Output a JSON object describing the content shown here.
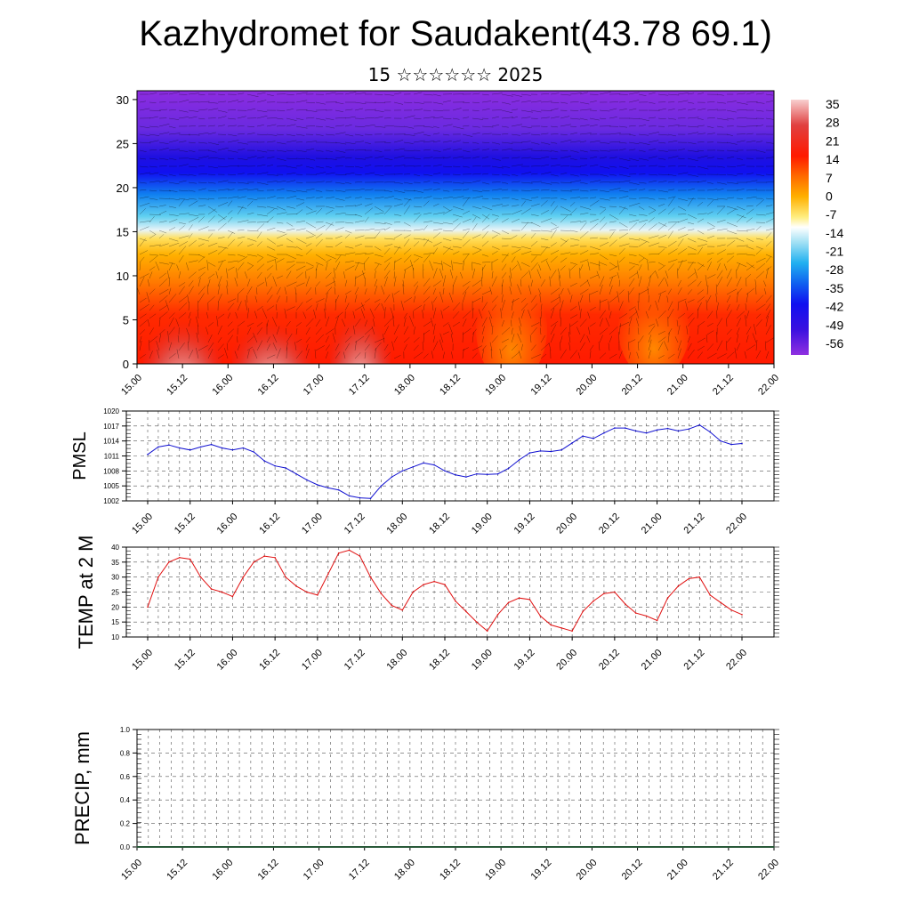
{
  "title": "Kazhydromet for Saudakent(43.78 69.1)",
  "subtitle": "15 ☆☆☆☆☆☆ 2025",
  "colors": {
    "pmsl_line": "#1010d0",
    "temp_line": "#e01010",
    "precip_line": "#2a5a3a",
    "grid": "#555555",
    "text": "#000000"
  },
  "time_ticks": [
    "15.00",
    "15.12",
    "16.00",
    "16.12",
    "17.00",
    "17.12",
    "18.00",
    "18.12",
    "19.00",
    "19.12",
    "20.00",
    "20.12",
    "21.00",
    "21.12",
    "22.00"
  ],
  "chart_data": [
    {
      "type": "heatmap",
      "title": "",
      "xlabel": "",
      "ylabel": "",
      "x": [
        "15.00",
        "15.12",
        "16.00",
        "16.12",
        "17.00",
        "17.12",
        "18.00",
        "18.12",
        "19.00",
        "19.12",
        "20.00",
        "20.12",
        "21.00",
        "21.12",
        "22.00"
      ],
      "y_ticks": [
        "0",
        "5",
        "10",
        "15",
        "20",
        "25",
        "30"
      ],
      "ylim": [
        0,
        31
      ],
      "colorbar_labels": [
        "35",
        "28",
        "21",
        "14",
        "7",
        "0",
        "-7",
        "-14",
        "-21",
        "-28",
        "-35",
        "-42",
        "-49",
        "-56"
      ],
      "colorbar_colors": [
        "#f8c8c8",
        "#e05050",
        "#e01818",
        "#ff3a00",
        "#ff7a00",
        "#ffb000",
        "#ffe060",
        "#ffffff",
        "#a8e0f0",
        "#30b8f0",
        "#1070f0",
        "#1010f0",
        "#3a10e0",
        "#8c2ce0"
      ],
      "grid": false
    },
    {
      "type": "line",
      "title": "",
      "ylabel": "PMSL",
      "xlabel": "",
      "categories": [
        "15.00",
        "15.12",
        "16.00",
        "16.12",
        "17.00",
        "17.12",
        "18.00",
        "18.12",
        "19.00",
        "19.12",
        "20.00",
        "20.12",
        "21.00",
        "21.12",
        "22.00"
      ],
      "y_ticks": [
        "1020",
        "1017",
        "1014",
        "1011",
        "1008",
        "1005",
        "1002"
      ],
      "ylim": [
        1002,
        1020
      ],
      "grid": true,
      "series": [
        {
          "x": [
            0,
            0.25,
            0.5,
            0.75,
            1,
            1.25,
            1.5,
            1.75,
            2,
            2.25,
            2.5,
            2.75,
            3,
            3.25,
            3.5,
            3.75,
            4,
            4.25,
            4.5,
            4.75,
            5,
            5.25,
            5.5,
            5.75,
            6,
            6.25,
            6.5,
            6.75,
            7,
            7.25,
            7.5,
            7.75,
            8,
            8.25,
            8.5,
            8.75,
            9,
            9.25,
            9.5,
            9.75,
            10,
            10.25,
            10.5,
            10.75,
            11,
            11.25,
            11.5,
            11.75,
            12,
            12.25,
            12.5,
            12.75,
            13,
            13.25,
            13.5,
            13.75,
            14
          ],
          "values": [
            1011.3,
            1012.8,
            1013.2,
            1012.6,
            1012.2,
            1012.8,
            1013.3,
            1012.6,
            1012.2,
            1012.6,
            1011.8,
            1010.0,
            1009.0,
            1008.6,
            1007.4,
            1006.2,
            1005.2,
            1004.6,
            1004.2,
            1003.0,
            1002.6,
            1002.5,
            1005.0,
            1006.8,
            1008.0,
            1008.8,
            1009.6,
            1009.2,
            1008.0,
            1007.2,
            1006.8,
            1007.4,
            1007.3,
            1007.4,
            1008.5,
            1010.2,
            1011.6,
            1012.0,
            1011.9,
            1012.2,
            1013.6,
            1015.0,
            1014.5,
            1015.6,
            1016.6,
            1016.6,
            1016.0,
            1015.6,
            1016.2,
            1016.5,
            1016.0,
            1016.4,
            1017.2,
            1015.8,
            1014.0,
            1013.3,
            1013.5
          ]
        }
      ]
    },
    {
      "type": "line",
      "title": "",
      "ylabel": "TEMP at 2 M",
      "xlabel": "",
      "categories": [
        "15.00",
        "15.12",
        "16.00",
        "16.12",
        "17.00",
        "17.12",
        "18.00",
        "18.12",
        "19.00",
        "19.12",
        "20.00",
        "20.12",
        "21.00",
        "21.12",
        "22.00"
      ],
      "y_ticks": [
        "40",
        "35",
        "30",
        "25",
        "20",
        "15",
        "10"
      ],
      "ylim": [
        10,
        40
      ],
      "grid": true,
      "series": [
        {
          "x": [
            0,
            0.25,
            0.5,
            0.75,
            1,
            1.25,
            1.5,
            1.75,
            2,
            2.25,
            2.5,
            2.75,
            3,
            3.25,
            3.5,
            3.75,
            4,
            4.25,
            4.5,
            4.75,
            5,
            5.25,
            5.5,
            5.75,
            6,
            6.25,
            6.5,
            6.75,
            7,
            7.25,
            7.5,
            7.75,
            8,
            8.25,
            8.5,
            8.75,
            9,
            9.25,
            9.5,
            9.75,
            10,
            10.25,
            10.5,
            10.75,
            11,
            11.25,
            11.5,
            11.75,
            12,
            12.25,
            12.5,
            12.75,
            13,
            13.25,
            13.5,
            13.75,
            14
          ],
          "values": [
            20,
            30,
            35,
            36.5,
            36,
            30,
            26,
            25,
            23.5,
            30,
            35,
            37,
            36.5,
            30,
            27,
            25,
            24,
            31,
            38,
            39,
            37,
            30,
            24.5,
            20.5,
            19,
            25,
            27.5,
            28.5,
            27.5,
            22,
            18.5,
            15,
            12,
            17.5,
            21.5,
            23,
            22.5,
            17,
            14,
            13,
            12,
            18.5,
            22,
            24.5,
            25,
            21,
            18,
            17,
            15.5,
            23,
            27,
            29.5,
            30,
            24,
            21.5,
            19,
            17.5
          ]
        }
      ]
    },
    {
      "type": "line",
      "title": "",
      "ylabel": "PRECIP, mm",
      "xlabel": "",
      "categories": [
        "15.00",
        "15.12",
        "16.00",
        "16.12",
        "17.00",
        "17.12",
        "18.00",
        "18.12",
        "19.00",
        "19.12",
        "20.00",
        "20.12",
        "21.00",
        "21.12",
        "22.00"
      ],
      "y_ticks": [
        "1.0",
        "0.8",
        "0.6",
        "0.4",
        "0.2",
        "0.0"
      ],
      "ylim": [
        0,
        1
      ],
      "grid": true,
      "series": [
        {
          "x": [
            0,
            14
          ],
          "values": [
            0,
            0
          ]
        }
      ]
    }
  ]
}
